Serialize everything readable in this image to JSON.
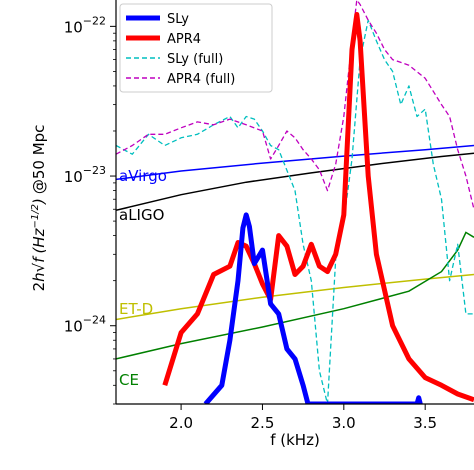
{
  "chart_data": {
    "type": "line",
    "title": "",
    "xlabel": "f (kHz)",
    "ylabel_parts": {
      "pre": "2",
      "h": "h",
      "sqrt": "√",
      "f": "f",
      "unit": "(Hz",
      "exp": "−1/2",
      "unit_close": ")",
      "suffix": "@50 Mpc"
    },
    "xlim": [
      1.6,
      3.8
    ],
    "ylim": [
      3e-25,
      1.5e-22
    ],
    "yscale": "log",
    "xticks": [
      {
        "value": 2.0,
        "label": "2.0"
      },
      {
        "value": 2.5,
        "label": "2.5"
      },
      {
        "value": 3.0,
        "label": "3.0"
      },
      {
        "value": 3.5,
        "label": "3.5"
      }
    ],
    "yticks": [
      {
        "value": 1e-24,
        "base": "10",
        "exp": "−24"
      },
      {
        "value": 1e-23,
        "base": "10",
        "exp": "−23"
      },
      {
        "value": 1e-22,
        "base": "10",
        "exp": "−22"
      }
    ],
    "legend_position": "top-left",
    "legend": [
      {
        "label": "SLy",
        "color": "#0000ff",
        "style": "solid-thick"
      },
      {
        "label": "APR4",
        "color": "#ff0000",
        "style": "solid-thick"
      },
      {
        "label": "SLy (full)",
        "color": "#00bfbf",
        "style": "dashed"
      },
      {
        "label": "APR4 (full)",
        "color": "#bf00bf",
        "style": "dashed"
      }
    ],
    "detectors": [
      {
        "name": "aVirgo",
        "color": "#0000ff",
        "x": [
          1.6,
          2.0,
          2.5,
          3.0,
          3.5,
          3.8
        ],
        "y": [
          9.5e-24,
          1.08e-23,
          1.22e-23,
          1.36e-23,
          1.5e-23,
          1.6e-23
        ]
      },
      {
        "name": "aLIGO",
        "color": "#000000",
        "x": [
          1.6,
          2.0,
          2.4,
          2.8,
          3.2,
          3.6,
          3.8
        ],
        "y": [
          5.9e-24,
          7.5e-24,
          9.1e-24,
          1.05e-23,
          1.2e-23,
          1.35e-23,
          1.42e-23
        ]
      },
      {
        "name": "ET-D",
        "color": "#bfbf00",
        "x": [
          1.6,
          2.0,
          2.5,
          3.0,
          3.5,
          3.8
        ],
        "y": [
          1.1e-24,
          1.3e-24,
          1.55e-24,
          1.8e-24,
          2.05e-24,
          2.2e-24
        ]
      },
      {
        "name": "CE",
        "color": "#008000",
        "x": [
          1.6,
          2.0,
          2.5,
          3.0,
          3.4,
          3.6,
          3.7,
          3.75,
          3.8
        ],
        "y": [
          6e-25,
          7.6e-25,
          9.8e-25,
          1.3e-24,
          1.7e-24,
          2.3e-24,
          3.2e-24,
          4.2e-24,
          3.9e-24
        ]
      }
    ],
    "series": [
      {
        "name": "SLy",
        "color": "#0000ff",
        "x": [
          2.15,
          2.25,
          2.3,
          2.35,
          2.38,
          2.4,
          2.42,
          2.45,
          2.5,
          2.55,
          2.6,
          2.65,
          2.7,
          2.75,
          2.78,
          3.45,
          3.46,
          3.47
        ],
        "y": [
          3e-25,
          4e-25,
          8e-25,
          2e-24,
          4.5e-24,
          5.5e-24,
          4.6e-24,
          2.6e-24,
          3.2e-24,
          1.4e-24,
          1.2e-24,
          7e-25,
          6e-25,
          4e-25,
          3e-25,
          3e-25,
          3.3e-25,
          3e-25
        ]
      },
      {
        "name": "APR4",
        "color": "#ff0000",
        "x": [
          1.9,
          2.0,
          2.1,
          2.2,
          2.3,
          2.35,
          2.4,
          2.45,
          2.5,
          2.55,
          2.6,
          2.65,
          2.7,
          2.75,
          2.8,
          2.85,
          2.9,
          2.95,
          3.0,
          3.05,
          3.08,
          3.1,
          3.15,
          3.2,
          3.3,
          3.4,
          3.5,
          3.6,
          3.7,
          3.8
        ],
        "y": [
          4e-25,
          9e-25,
          1.2e-24,
          2.2e-24,
          2.5e-24,
          3.6e-24,
          3.4e-24,
          2.6e-24,
          1.9e-24,
          1.5e-24,
          4e-24,
          3.4e-24,
          2.2e-24,
          2.5e-24,
          3.5e-24,
          2.5e-24,
          2.3e-24,
          3e-24,
          5.5e-24,
          7e-23,
          1.2e-22,
          8e-23,
          1e-23,
          3e-24,
          1e-24,
          6e-25,
          4.5e-25,
          4e-25,
          3.5e-25,
          3.2e-25
        ]
      },
      {
        "name": "SLy (full)",
        "color": "#00bfbf",
        "x": [
          1.6,
          1.7,
          1.8,
          1.9,
          2.0,
          2.1,
          2.2,
          2.3,
          2.35,
          2.4,
          2.45,
          2.5,
          2.55,
          2.6,
          2.7,
          2.75,
          2.8,
          2.85,
          2.9,
          2.95,
          3.0,
          3.05,
          3.1,
          3.15,
          3.2,
          3.25,
          3.3,
          3.35,
          3.4,
          3.45,
          3.5,
          3.55,
          3.6,
          3.65,
          3.7,
          3.75,
          3.8
        ],
        "y": [
          1.6e-23,
          1.4e-23,
          1.9e-23,
          1.6e-23,
          1.8e-23,
          1.9e-23,
          2.2e-23,
          2.5e-23,
          2.1e-23,
          2.5e-23,
          2.4e-23,
          2e-23,
          1.6e-23,
          1.5e-23,
          8e-24,
          3.5e-24,
          2e-24,
          5e-25,
          3e-25,
          2.8e-24,
          5e-24,
          1.3e-23,
          6e-23,
          1.1e-22,
          8e-23,
          6e-23,
          5e-23,
          3e-23,
          4e-23,
          2.5e-23,
          2.8e-23,
          1.2e-23,
          7e-24,
          2e-24,
          3.5e-24,
          1.2e-24,
          1.2e-24
        ]
      },
      {
        "name": "APR4 (full)",
        "color": "#bf00bf",
        "x": [
          1.6,
          1.7,
          1.8,
          1.9,
          2.0,
          2.1,
          2.2,
          2.3,
          2.4,
          2.5,
          2.55,
          2.6,
          2.65,
          2.7,
          2.75,
          2.8,
          2.85,
          2.9,
          2.95,
          3.0,
          3.05,
          3.08,
          3.1,
          3.15,
          3.2,
          3.25,
          3.3,
          3.4,
          3.5,
          3.6,
          3.65,
          3.7,
          3.75,
          3.8
        ],
        "y": [
          1.4e-23,
          1.6e-23,
          1.9e-23,
          1.9e-23,
          2.1e-23,
          2.3e-23,
          2.2e-23,
          2.4e-23,
          2.2e-23,
          2e-23,
          1.3e-23,
          1.6e-23,
          2e-23,
          1.8e-23,
          1.5e-23,
          1.3e-23,
          1.1e-23,
          8e-24,
          1.2e-23,
          2.5e-23,
          8e-23,
          1.5e-22,
          1.4e-22,
          1.1e-22,
          9e-23,
          7e-23,
          6e-23,
          5.5e-23,
          4.5e-23,
          3e-23,
          2.5e-23,
          1.5e-23,
          1e-23,
          6e-24
        ]
      }
    ]
  }
}
